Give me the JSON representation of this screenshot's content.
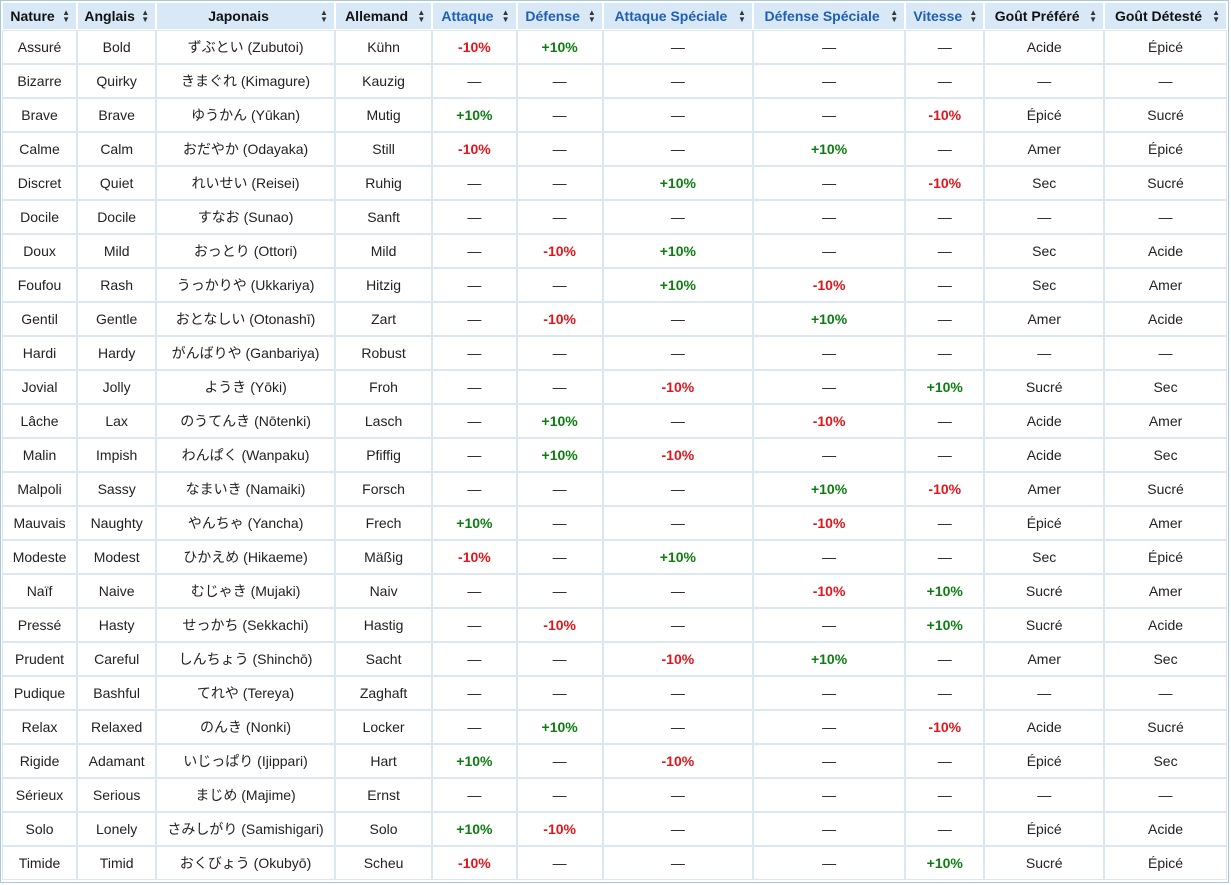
{
  "table": {
    "columns": [
      {
        "key": "nature",
        "label": "Nature",
        "stat": false
      },
      {
        "key": "anglais",
        "label": "Anglais",
        "stat": false
      },
      {
        "key": "japonais",
        "label": "Japonais",
        "stat": false
      },
      {
        "key": "allemand",
        "label": "Allemand",
        "stat": false
      },
      {
        "key": "attaque",
        "label": "Attaque",
        "stat": true
      },
      {
        "key": "defense",
        "label": "Défense",
        "stat": true
      },
      {
        "key": "attaque_speciale",
        "label": "Attaque Spéciale",
        "stat": true
      },
      {
        "key": "defense_speciale",
        "label": "Défense Spéciale",
        "stat": true
      },
      {
        "key": "vitesse",
        "label": "Vitesse",
        "stat": true
      },
      {
        "key": "gout_prefere",
        "label": "Goût Préféré",
        "stat": false
      },
      {
        "key": "gout_deteste",
        "label": "Goût Détesté",
        "stat": false
      }
    ],
    "rows": [
      [
        "Assuré",
        "Bold",
        "ずぶとい (Zubutoi)",
        "Kühn",
        "-10%",
        "+10%",
        "—",
        "—",
        "—",
        "Acide",
        "Épicé"
      ],
      [
        "Bizarre",
        "Quirky",
        "きまぐれ (Kimagure)",
        "Kauzig",
        "—",
        "—",
        "—",
        "—",
        "—",
        "—",
        "—"
      ],
      [
        "Brave",
        "Brave",
        "ゆうかん (Yūkan)",
        "Mutig",
        "+10%",
        "—",
        "—",
        "—",
        "-10%",
        "Épicé",
        "Sucré"
      ],
      [
        "Calme",
        "Calm",
        "おだやか (Odayaka)",
        "Still",
        "-10%",
        "—",
        "—",
        "+10%",
        "—",
        "Amer",
        "Épicé"
      ],
      [
        "Discret",
        "Quiet",
        "れいせい (Reisei)",
        "Ruhig",
        "—",
        "—",
        "+10%",
        "—",
        "-10%",
        "Sec",
        "Sucré"
      ],
      [
        "Docile",
        "Docile",
        "すなお (Sunao)",
        "Sanft",
        "—",
        "—",
        "—",
        "—",
        "—",
        "—",
        "—"
      ],
      [
        "Doux",
        "Mild",
        "おっとり (Ottori)",
        "Mild",
        "—",
        "-10%",
        "+10%",
        "—",
        "—",
        "Sec",
        "Acide"
      ],
      [
        "Foufou",
        "Rash",
        "うっかりや (Ukkariya)",
        "Hitzig",
        "—",
        "—",
        "+10%",
        "-10%",
        "—",
        "Sec",
        "Amer"
      ],
      [
        "Gentil",
        "Gentle",
        "おとなしい (Otonashī)",
        "Zart",
        "—",
        "-10%",
        "—",
        "+10%",
        "—",
        "Amer",
        "Acide"
      ],
      [
        "Hardi",
        "Hardy",
        "がんばりや (Ganbariya)",
        "Robust",
        "—",
        "—",
        "—",
        "—",
        "—",
        "—",
        "—"
      ],
      [
        "Jovial",
        "Jolly",
        "ようき (Yōki)",
        "Froh",
        "—",
        "—",
        "-10%",
        "—",
        "+10%",
        "Sucré",
        "Sec"
      ],
      [
        "Lâche",
        "Lax",
        "のうてんき (Nōtenki)",
        "Lasch",
        "—",
        "+10%",
        "—",
        "-10%",
        "—",
        "Acide",
        "Amer"
      ],
      [
        "Malin",
        "Impish",
        "わんぱく (Wanpaku)",
        "Pfiffig",
        "—",
        "+10%",
        "-10%",
        "—",
        "—",
        "Acide",
        "Sec"
      ],
      [
        "Malpoli",
        "Sassy",
        "なまいき (Namaiki)",
        "Forsch",
        "—",
        "—",
        "—",
        "+10%",
        "-10%",
        "Amer",
        "Sucré"
      ],
      [
        "Mauvais",
        "Naughty",
        "やんちゃ (Yancha)",
        "Frech",
        "+10%",
        "—",
        "—",
        "-10%",
        "—",
        "Épicé",
        "Amer"
      ],
      [
        "Modeste",
        "Modest",
        "ひかえめ (Hikaeme)",
        "Mäßig",
        "-10%",
        "—",
        "+10%",
        "—",
        "—",
        "Sec",
        "Épicé"
      ],
      [
        "Naïf",
        "Naive",
        "むじゃき (Mujaki)",
        "Naiv",
        "—",
        "—",
        "—",
        "-10%",
        "+10%",
        "Sucré",
        "Amer"
      ],
      [
        "Pressé",
        "Hasty",
        "せっかち (Sekkachi)",
        "Hastig",
        "—",
        "-10%",
        "—",
        "—",
        "+10%",
        "Sucré",
        "Acide"
      ],
      [
        "Prudent",
        "Careful",
        "しんちょう (Shinchō)",
        "Sacht",
        "—",
        "—",
        "-10%",
        "+10%",
        "—",
        "Amer",
        "Sec"
      ],
      [
        "Pudique",
        "Bashful",
        "てれや (Tereya)",
        "Zaghaft",
        "—",
        "—",
        "—",
        "—",
        "—",
        "—",
        "—"
      ],
      [
        "Relax",
        "Relaxed",
        "のんき (Nonki)",
        "Locker",
        "—",
        "+10%",
        "—",
        "—",
        "-10%",
        "Acide",
        "Sucré"
      ],
      [
        "Rigide",
        "Adamant",
        "いじっぱり (Ijippari)",
        "Hart",
        "+10%",
        "—",
        "-10%",
        "—",
        "—",
        "Épicé",
        "Sec"
      ],
      [
        "Sérieux",
        "Serious",
        "まじめ (Majime)",
        "Ernst",
        "—",
        "—",
        "—",
        "—",
        "—",
        "—",
        "—"
      ],
      [
        "Solo",
        "Lonely",
        "さみしがり (Samishigari)",
        "Solo",
        "+10%",
        "-10%",
        "—",
        "—",
        "—",
        "Épicé",
        "Acide"
      ],
      [
        "Timide",
        "Timid",
        "おくびょう (Okubyō)",
        "Scheu",
        "-10%",
        "—",
        "—",
        "—",
        "+10%",
        "Sucré",
        "Épicé"
      ]
    ]
  },
  "colors": {
    "header_bg": "#d8e8f6",
    "stat_header_text": "#1f5fb5",
    "positive": "#0d7d12",
    "negative": "#e2151b"
  },
  "icons": {
    "sort": "sort-arrows-icon"
  }
}
